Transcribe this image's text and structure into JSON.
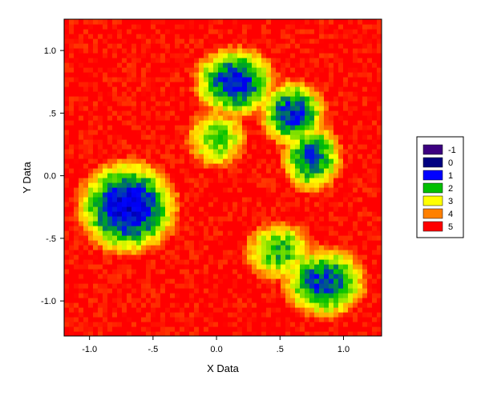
{
  "chart_data": {
    "type": "heatmap",
    "title": "",
    "xlabel": "X Data",
    "ylabel": "Y Data",
    "xlim": [
      -1.2,
      1.3
    ],
    "ylim": [
      -1.28,
      1.25
    ],
    "x_ticks": [
      {
        "value": -1.0,
        "label": "-1.0"
      },
      {
        "value": -0.5,
        "label": "-.5"
      },
      {
        "value": 0.0,
        "label": "0.0"
      },
      {
        "value": 0.5,
        "label": ".5"
      },
      {
        "value": 1.0,
        "label": "1.0"
      }
    ],
    "y_ticks": [
      {
        "value": 1.0,
        "label": "1.0"
      },
      {
        "value": 0.5,
        "label": ".5"
      },
      {
        "value": 0.0,
        "label": "0.0"
      },
      {
        "value": -0.5,
        "label": "-.5"
      },
      {
        "value": -1.0,
        "label": "-1.0"
      }
    ],
    "grid": false,
    "legend_position": "right",
    "legend": [
      {
        "label": "-1",
        "color": "#3c0080"
      },
      {
        "label": "0",
        "color": "#000080"
      },
      {
        "label": "1",
        "color": "#0000ff"
      },
      {
        "label": "2",
        "color": "#00c000"
      },
      {
        "label": "3",
        "color": "#ffff00"
      },
      {
        "label": "4",
        "color": "#ff8000"
      },
      {
        "label": "5",
        "color": "#ff0000"
      }
    ],
    "background_level": 5,
    "regions": [
      {
        "name": "basin-left",
        "center": [
          -0.7,
          -0.25
        ],
        "radius": [
          0.42,
          0.4
        ],
        "min_level": 0.6
      },
      {
        "name": "basin-top",
        "center": [
          0.15,
          0.75
        ],
        "radius": [
          0.35,
          0.3
        ],
        "min_level": 1.0
      },
      {
        "name": "basin-top-right",
        "center": [
          0.6,
          0.5
        ],
        "radius": [
          0.28,
          0.28
        ],
        "min_level": 1.1
      },
      {
        "name": "basin-right",
        "center": [
          0.75,
          0.15
        ],
        "radius": [
          0.25,
          0.3
        ],
        "min_level": 1.4
      },
      {
        "name": "basin-bottom-right",
        "center": [
          0.85,
          -0.85
        ],
        "radius": [
          0.35,
          0.3
        ],
        "min_level": 1.2
      },
      {
        "name": "ridge-lower-middle",
        "center": [
          0.5,
          -0.6
        ],
        "radius": [
          0.3,
          0.25
        ],
        "min_level": 2.0
      },
      {
        "name": "ridge-center",
        "center": [
          0.0,
          0.3
        ],
        "radius": [
          0.25,
          0.25
        ],
        "min_level": 2.2
      }
    ]
  }
}
